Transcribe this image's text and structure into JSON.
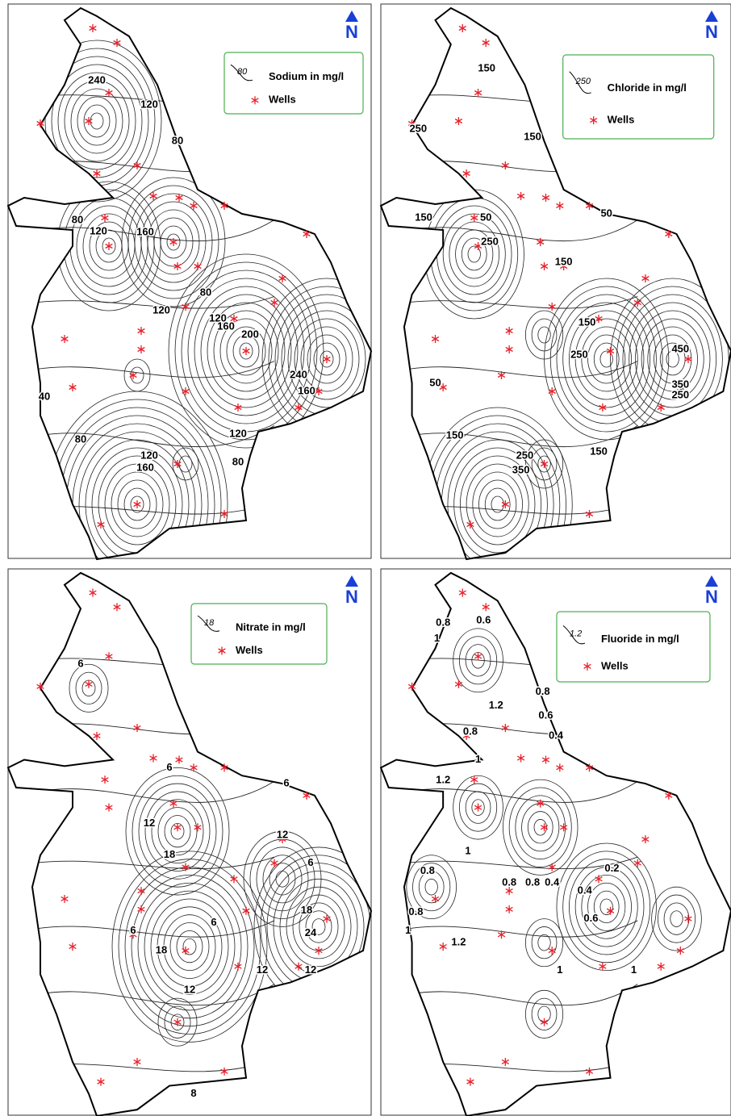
{
  "panels": [
    {
      "north": "N",
      "legend": {
        "sample": "80",
        "label": "Sodium in mg/l",
        "wells": "Wells"
      },
      "contour_labels": [
        "80",
        "120",
        "240",
        "120",
        "80",
        "160",
        "80",
        "120",
        "120",
        "160",
        "200",
        "240",
        "160",
        "40",
        "80",
        "120",
        "160",
        "120",
        "80"
      ]
    },
    {
      "north": "N",
      "legend": {
        "sample": "250",
        "label": "Chloride in mg/l",
        "wells": "Wells"
      },
      "contour_labels": [
        "150",
        "150",
        "250",
        "150",
        "50",
        "250",
        "50",
        "150",
        "150",
        "250",
        "450",
        "350",
        "250",
        "50",
        "150",
        "250",
        "350",
        "150"
      ]
    },
    {
      "north": "N",
      "legend": {
        "sample": "18",
        "label": "Nitrate in mg/l",
        "wells": "Wells"
      },
      "contour_labels": [
        "6",
        "6",
        "6",
        "12",
        "18",
        "12",
        "6",
        "6",
        "6",
        "18",
        "18",
        "24",
        "12",
        "12",
        "12",
        "8"
      ]
    },
    {
      "north": "N",
      "legend": {
        "sample": "1.2",
        "label": "Fluoride in mg/l",
        "wells": "Wells"
      },
      "contour_labels": [
        "0.8",
        "0.6",
        "1",
        "1.2",
        "0.8",
        "0.8",
        "0.6",
        "0.4",
        "1",
        "1.2",
        "1",
        "0.8",
        "0.8",
        "0.8",
        "0.4",
        "0.2",
        "0.4",
        "0.6",
        "0.8",
        "1",
        "1.2",
        "1",
        "1"
      ]
    }
  ]
}
